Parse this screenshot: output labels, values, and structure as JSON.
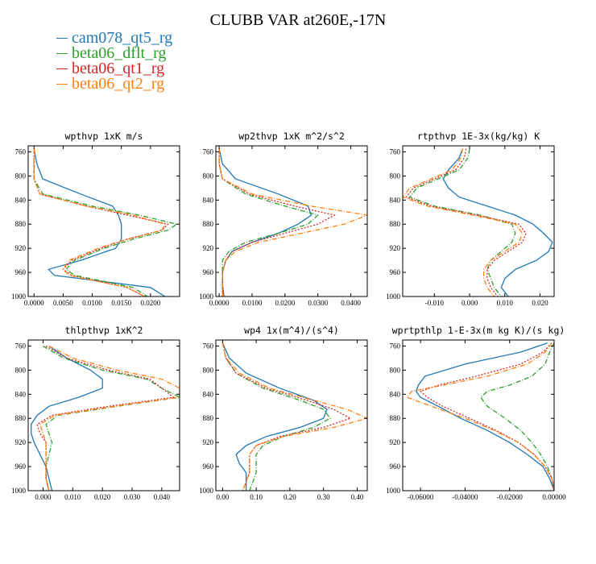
{
  "title": "CLUBB VAR at260E,-17N",
  "legend": [
    {
      "name": "cam078_qt5_rg",
      "color": "#1f77b4",
      "dash": ""
    },
    {
      "name": "beta06_dflt_rg",
      "color": "#2ca02c",
      "dash": "6,2,1,2"
    },
    {
      "name": "beta06_qt1_rg",
      "color": "#d62728",
      "dash": "2,2"
    },
    {
      "name": "beta06_qt2_rg",
      "color": "#ff7f0e",
      "dash": "6,2,1,2"
    }
  ],
  "chart_data": [
    {
      "type": "line",
      "title": "wpthvp  1xK m/s",
      "xlim": [
        -0.001,
        0.025
      ],
      "ylim": [
        750,
        1000
      ],
      "y_inverted": true,
      "xticks": [
        0.0,
        0.005,
        0.01,
        0.015,
        0.02
      ],
      "xtick_labels": [
        "0.0000",
        "0.0050",
        "0.0100",
        "0.0150",
        "0.0200"
      ],
      "yticks": [
        760,
        800,
        840,
        880,
        920,
        960,
        1000
      ],
      "y": [
        755,
        780,
        805,
        830,
        850,
        865,
        880,
        890,
        905,
        920,
        940,
        955,
        965,
        985,
        1000
      ],
      "series": [
        {
          "name": "cam078_qt5_rg",
          "x": [
            0.0,
            0.0005,
            0.0015,
            0.008,
            0.0135,
            0.0145,
            0.015,
            0.015,
            0.015,
            0.014,
            0.008,
            0.0025,
            0.0035,
            0.02,
            0.0225
          ]
        },
        {
          "name": "beta06_dflt_rg",
          "x": [
            0.0,
            0.0,
            0.0,
            0.0015,
            0.01,
            0.018,
            0.0245,
            0.023,
            0.017,
            0.012,
            0.007,
            0.0055,
            0.007,
            0.017,
            0.0195
          ]
        },
        {
          "name": "beta06_qt1_rg",
          "x": [
            0.0,
            0.0,
            0.0,
            0.001,
            0.009,
            0.016,
            0.023,
            0.022,
            0.016,
            0.0115,
            0.0065,
            0.005,
            0.0065,
            0.016,
            0.019
          ]
        },
        {
          "name": "beta06_qt2_rg",
          "x": [
            0.0,
            0.0,
            0.0,
            0.001,
            0.009,
            0.017,
            0.0225,
            0.022,
            0.016,
            0.011,
            0.006,
            0.005,
            0.006,
            0.016,
            0.019
          ]
        }
      ]
    },
    {
      "type": "line",
      "title": "wp2thvp  1xK m^2/s^2",
      "xlim": [
        -0.001,
        0.045
      ],
      "ylim": [
        750,
        1000
      ],
      "y_inverted": true,
      "xticks": [
        0.0,
        0.01,
        0.02,
        0.03,
        0.04
      ],
      "xtick_labels": [
        "0.0000",
        "0.0100",
        "0.0200",
        "0.0300",
        "0.0400"
      ],
      "yticks": [
        760,
        800,
        840,
        880,
        920,
        960,
        1000
      ],
      "y": [
        755,
        780,
        805,
        830,
        850,
        865,
        880,
        895,
        910,
        925,
        940,
        960,
        980,
        1000
      ],
      "series": [
        {
          "name": "cam078_qt5_rg",
          "x": [
            0.0,
            0.001,
            0.005,
            0.018,
            0.027,
            0.028,
            0.024,
            0.018,
            0.01,
            0.004,
            0.002,
            0.001,
            0.001,
            0.0015
          ]
        },
        {
          "name": "beta06_dflt_rg",
          "x": [
            0.0,
            0.0,
            0.001,
            0.008,
            0.02,
            0.03,
            0.027,
            0.018,
            0.008,
            0.003,
            0.001,
            0.001,
            0.001,
            0.001
          ]
        },
        {
          "name": "beta06_qt1_rg",
          "x": [
            0.0,
            0.0,
            0.001,
            0.009,
            0.023,
            0.035,
            0.03,
            0.02,
            0.01,
            0.004,
            0.002,
            0.001,
            0.001,
            0.001
          ]
        },
        {
          "name": "beta06_qt2_rg",
          "x": [
            0.0,
            0.0,
            0.001,
            0.01,
            0.028,
            0.045,
            0.038,
            0.025,
            0.012,
            0.005,
            0.002,
            0.001,
            0.001,
            0.001
          ]
        }
      ]
    },
    {
      "type": "line",
      "title": "rtpthvp  1E-3x(kg/kg) K",
      "xlim": [
        -0.019,
        0.024
      ],
      "ylim": [
        750,
        1000
      ],
      "y_inverted": true,
      "xticks": [
        -0.01,
        0.0,
        0.01,
        0.02
      ],
      "xtick_labels": [
        "-0.010",
        "0.000",
        "0.010",
        "0.020"
      ],
      "yticks": [
        760,
        800,
        840,
        880,
        920,
        960,
        1000
      ],
      "y": [
        755,
        770,
        790,
        805,
        820,
        835,
        850,
        865,
        880,
        895,
        910,
        925,
        940,
        955,
        970,
        985,
        1000
      ],
      "series": [
        {
          "name": "cam078_qt5_rg",
          "x": [
            -0.002,
            -0.003,
            -0.006,
            -0.0075,
            -0.006,
            -0.003,
            0.005,
            0.013,
            0.018,
            0.021,
            0.0235,
            0.0225,
            0.019,
            0.013,
            0.01,
            0.009,
            0.011
          ]
        },
        {
          "name": "beta06_dflt_rg",
          "x": [
            0.0,
            -0.0005,
            -0.003,
            -0.009,
            -0.015,
            -0.017,
            -0.01,
            0.003,
            0.012,
            0.013,
            0.012,
            0.009,
            0.006,
            0.005,
            0.006,
            0.007,
            0.009
          ]
        },
        {
          "name": "beta06_qt1_rg",
          "x": [
            -0.001,
            -0.0015,
            -0.004,
            -0.01,
            -0.016,
            -0.018,
            -0.011,
            0.002,
            0.014,
            0.016,
            0.015,
            0.011,
            0.007,
            0.005,
            0.005,
            0.006,
            0.008
          ]
        },
        {
          "name": "beta06_qt2_rg",
          "x": [
            -0.002,
            -0.0025,
            -0.005,
            -0.011,
            -0.017,
            -0.019,
            -0.012,
            0.001,
            0.013,
            0.015,
            0.014,
            0.01,
            0.006,
            0.004,
            0.004,
            0.005,
            0.007
          ]
        }
      ]
    },
    {
      "type": "line",
      "title": "thlpthvp  1xK^2",
      "xlim": [
        -0.005,
        0.046
      ],
      "ylim": [
        750,
        1000
      ],
      "y_inverted": true,
      "xticks": [
        0.0,
        0.01,
        0.02,
        0.03,
        0.04
      ],
      "xtick_labels": [
        "0.000",
        "0.010",
        "0.020",
        "0.030",
        "0.040"
      ],
      "yticks": [
        760,
        800,
        840,
        880,
        920,
        960,
        1000
      ],
      "y": [
        760,
        780,
        800,
        815,
        830,
        845,
        860,
        875,
        890,
        905,
        920,
        940,
        960,
        980,
        1000
      ],
      "series": [
        {
          "name": "cam078_qt5_rg",
          "x": [
            0.002,
            0.008,
            0.016,
            0.02,
            0.02,
            0.012,
            0.002,
            -0.002,
            -0.004,
            -0.004,
            -0.003,
            -0.001,
            0.001,
            0.002,
            0.003
          ]
        },
        {
          "name": "beta06_dflt_rg",
          "x": [
            0.0,
            0.007,
            0.02,
            0.035,
            0.04,
            0.046,
            0.025,
            0.005,
            0.001,
            0.002,
            0.003,
            0.002,
            0.001,
            0.001,
            0.002
          ]
        },
        {
          "name": "beta06_qt1_rg",
          "x": [
            0.001,
            0.008,
            0.022,
            0.036,
            0.04,
            0.044,
            0.022,
            0.003,
            -0.002,
            -0.001,
            0.001,
            0.001,
            0.001,
            0.001,
            0.002
          ]
        },
        {
          "name": "beta06_qt2_rg",
          "x": [
            0.002,
            0.01,
            0.025,
            0.04,
            0.046,
            0.046,
            0.024,
            0.004,
            -0.001,
            0.0,
            0.001,
            0.001,
            0.001,
            0.001,
            0.002
          ]
        }
      ]
    },
    {
      "type": "line",
      "title": "wp4  1x(m^4)/(s^4)",
      "xlim": [
        -0.02,
        0.43
      ],
      "ylim": [
        750,
        1000
      ],
      "y_inverted": true,
      "xticks": [
        0.0,
        0.1,
        0.2,
        0.3,
        0.4
      ],
      "xtick_labels": [
        "0.00",
        "0.10",
        "0.20",
        "0.30",
        "0.40"
      ],
      "yticks": [
        760,
        800,
        840,
        880,
        920,
        960,
        1000
      ],
      "y": [
        755,
        780,
        805,
        830,
        850,
        865,
        880,
        895,
        910,
        925,
        940,
        955,
        970,
        985,
        1000
      ],
      "series": [
        {
          "name": "cam078_qt5_rg",
          "x": [
            0.0,
            0.02,
            0.07,
            0.17,
            0.27,
            0.31,
            0.3,
            0.23,
            0.13,
            0.07,
            0.04,
            0.05,
            0.07,
            0.07,
            0.07
          ]
        },
        {
          "name": "beta06_dflt_rg",
          "x": [
            0.0,
            0.01,
            0.04,
            0.12,
            0.23,
            0.3,
            0.32,
            0.27,
            0.18,
            0.12,
            0.1,
            0.1,
            0.1,
            0.09,
            0.08
          ]
        },
        {
          "name": "beta06_qt1_rg",
          "x": [
            0.0,
            0.01,
            0.04,
            0.13,
            0.25,
            0.33,
            0.38,
            0.3,
            0.17,
            0.1,
            0.08,
            0.08,
            0.08,
            0.07,
            0.06
          ]
        },
        {
          "name": "beta06_qt2_rg",
          "x": [
            0.0,
            0.01,
            0.05,
            0.14,
            0.27,
            0.37,
            0.43,
            0.33,
            0.18,
            0.1,
            0.08,
            0.08,
            0.08,
            0.07,
            0.06
          ]
        }
      ]
    },
    {
      "type": "line",
      "title": "wprtpthlp  1-E-3x(m kg K)/(s kg)",
      "xlim": [
        -0.068,
        0.0
      ],
      "ylim": [
        750,
        1000
      ],
      "y_inverted": true,
      "xticks": [
        -0.06,
        -0.04,
        -0.02,
        0.0
      ],
      "xtick_labels": [
        "-0.06000",
        "-0.04000",
        "-0.02000",
        "0.00000"
      ],
      "yticks": [
        760,
        800,
        840,
        880,
        920,
        960,
        1000
      ],
      "y": [
        755,
        770,
        790,
        810,
        825,
        835,
        845,
        860,
        880,
        900,
        920,
        940,
        960,
        980,
        1000
      ],
      "series": [
        {
          "name": "cam078_qt5_rg",
          "x": [
            -0.003,
            -0.015,
            -0.04,
            -0.058,
            -0.061,
            -0.062,
            -0.06,
            -0.052,
            -0.042,
            -0.03,
            -0.02,
            -0.012,
            -0.005,
            -0.002,
            0.0
          ]
        },
        {
          "name": "beta06_dflt_rg",
          "x": [
            0.0,
            -0.002,
            -0.004,
            -0.01,
            -0.02,
            -0.03,
            -0.033,
            -0.03,
            -0.022,
            -0.015,
            -0.01,
            -0.006,
            -0.003,
            -0.001,
            0.0
          ]
        },
        {
          "name": "beta06_qt1_rg",
          "x": [
            -0.001,
            -0.005,
            -0.015,
            -0.035,
            -0.052,
            -0.06,
            -0.057,
            -0.05,
            -0.038,
            -0.026,
            -0.016,
            -0.009,
            -0.004,
            -0.001,
            0.0
          ]
        },
        {
          "name": "beta06_qt2_rg",
          "x": [
            -0.001,
            -0.004,
            -0.012,
            -0.03,
            -0.05,
            -0.064,
            -0.066,
            -0.055,
            -0.04,
            -0.027,
            -0.016,
            -0.009,
            -0.004,
            -0.001,
            0.0
          ]
        }
      ]
    }
  ]
}
